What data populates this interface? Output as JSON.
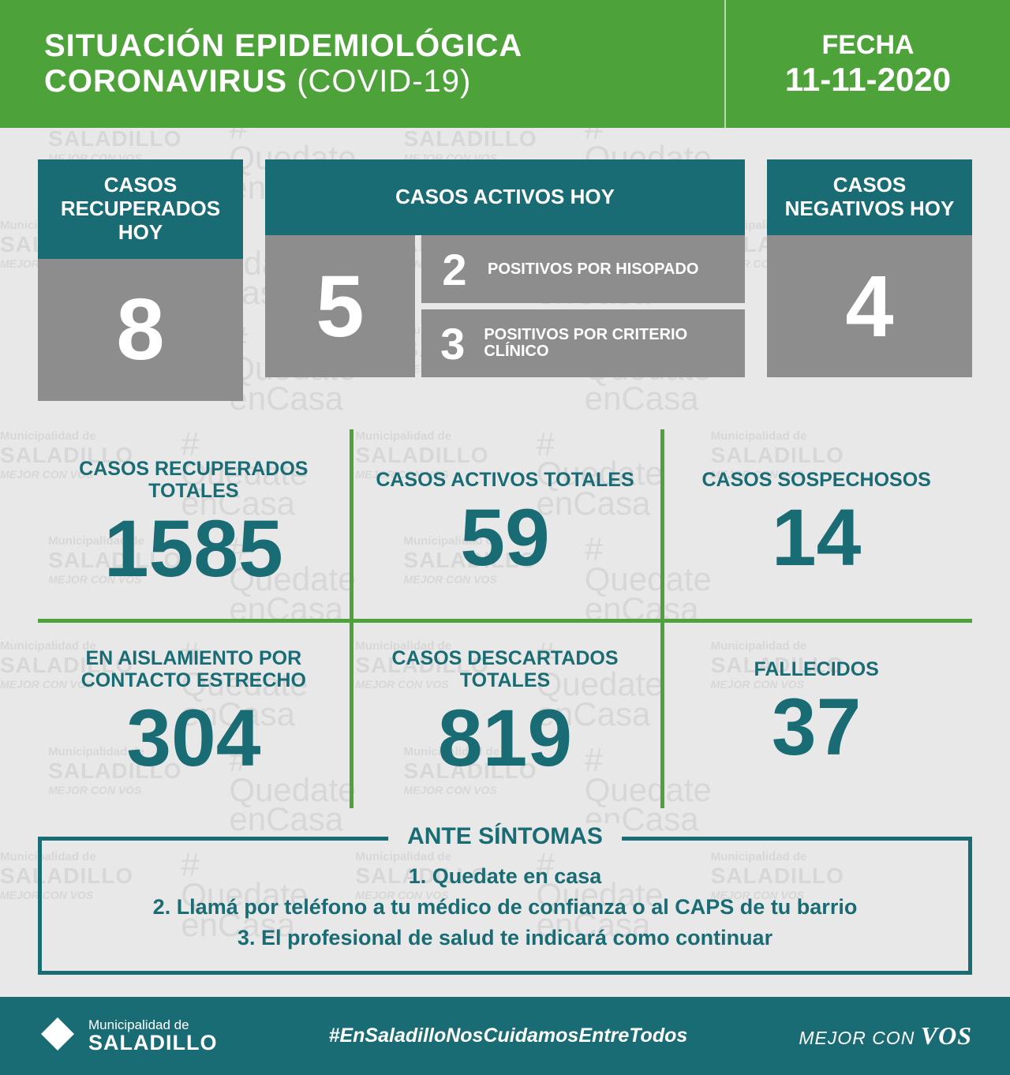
{
  "colors": {
    "accent": "#4da23a",
    "teal": "#1a6c74",
    "grey_box": "#8d8d8d",
    "page_bg": "#e8e8e8",
    "text_white": "#ffffff"
  },
  "header": {
    "title_line1": "SITUACIÓN EPIDEMIOLÓGICA",
    "title_line2_bold": "CORONAVIRUS",
    "title_line2_thin": "(COVID-19)",
    "date_label": "FECHA",
    "date_value": "11-11-2020"
  },
  "today": {
    "recovered": {
      "label": "CASOS RECUPERADOS HOY",
      "value": "8"
    },
    "active": {
      "label": "CASOS ACTIVOS HOY",
      "value": "5",
      "sub1": {
        "n": "2",
        "t": "POSITIVOS POR HISOPADO"
      },
      "sub2": {
        "n": "3",
        "t": "POSITIVOS POR CRITERIO CLÍNICO"
      }
    },
    "negative": {
      "label": "CASOS NEGATIVOS HOY",
      "value": "4"
    }
  },
  "totals": {
    "recovered": {
      "label": "CASOS RECUPERADOS TOTALES",
      "value": "1585"
    },
    "active": {
      "label": "CASOS ACTIVOS TOTALES",
      "value": "59"
    },
    "suspected": {
      "label": "CASOS SOSPECHOSOS",
      "value": "14"
    },
    "isolated": {
      "label": "EN AISLAMIENTO POR CONTACTO ESTRECHO",
      "value": "304"
    },
    "discarded": {
      "label": "CASOS DESCARTADOS TOTALES",
      "value": "819"
    },
    "deaths": {
      "label": "FALLECIDOS",
      "value": "37"
    }
  },
  "instructions": {
    "legend": "ANTE SÍNTOMAS",
    "line1": "1. Quedate en casa",
    "line2": "2. Llamá por teléfono a tu médico de confianza o al CAPS de tu barrio",
    "line3": "3. El profesional de salud te indicará como continuar"
  },
  "footer": {
    "brand_top": "Municipalidad de",
    "brand_bottom": "SALADILLO",
    "hashtag": "#EnSaladilloNosCuidamosEntreTodos",
    "slogan_pre": "MEJOR CON",
    "slogan_em": "VOS"
  },
  "watermark": {
    "muni_top": "Municipalidad de",
    "muni_mid": "SALADILLO",
    "muni_bot": "MEJOR CON VOS",
    "quedate_l1": "Quedate",
    "quedate_l2": "enCasa"
  }
}
